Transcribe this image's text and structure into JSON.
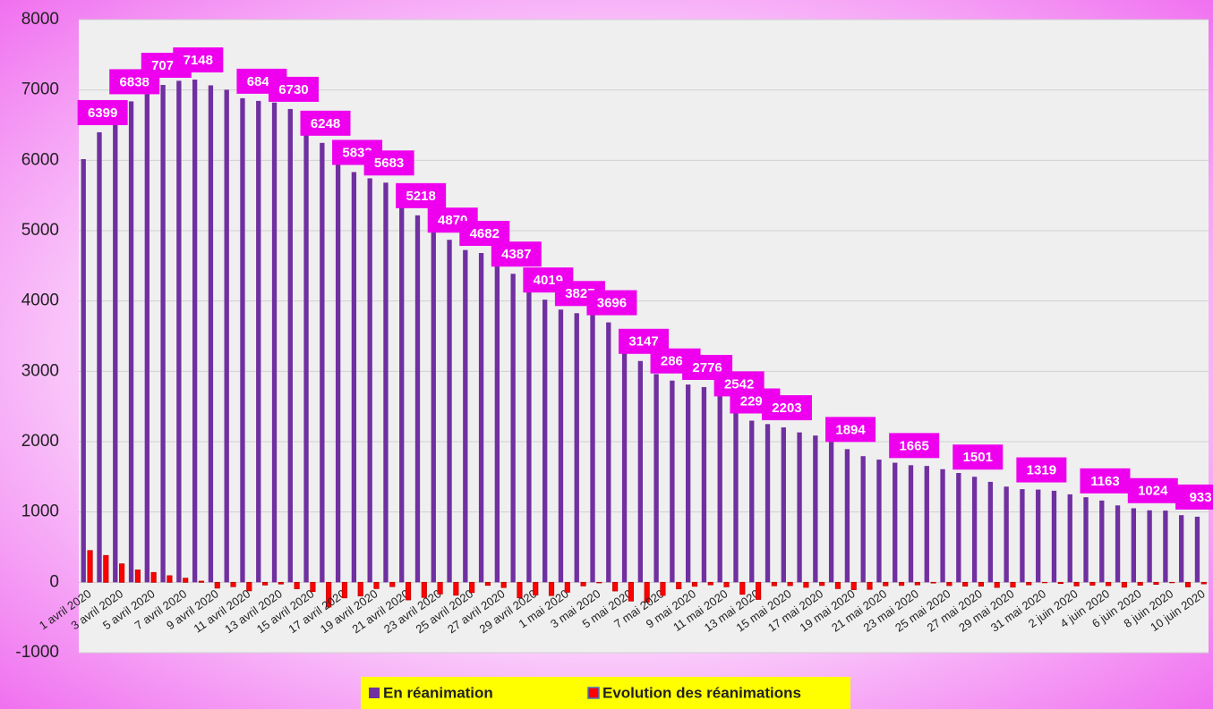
{
  "chart_data": {
    "type": "bar",
    "categories": [
      "1 avril 2020",
      null,
      "3 avril 2020",
      null,
      "5 avril 2020",
      null,
      "7 avril 2020",
      null,
      "9 avril 2020",
      null,
      "11 avril 2020",
      null,
      "13 avril 2020",
      null,
      "15 avril 2020",
      null,
      "17 avril 2020",
      null,
      "19 avril 2020",
      null,
      "21 avril 2020",
      null,
      "23 avril 2020",
      null,
      "25 avril 2020",
      null,
      "27 avril 2020",
      null,
      "29 avril 2020",
      null,
      "1 mai 2020",
      null,
      "3 mai 2020",
      null,
      "5 mai 2020",
      null,
      "7 mai 2020",
      null,
      "9 mai 2020",
      null,
      "11 mai 2020",
      null,
      "13 mai 2020",
      null,
      "15 mai 2020",
      null,
      "17 mai 2020",
      null,
      "19 mai 2020",
      null,
      "21 mai 2020",
      null,
      "23 mai 2020",
      null,
      "25 mai 2020",
      null,
      "27 mai 2020",
      null,
      "29 mai 2020",
      null,
      "31 mai 2020",
      null,
      "2 juin 2020",
      null,
      "4 juin 2020",
      null,
      "6 juin 2020",
      null,
      "8 juin 2020",
      null,
      "10 juin 2020"
    ],
    "series": [
      {
        "name": "En réanimation",
        "color": "#7030a0",
        "values": [
          6017,
          6399,
          6662,
          6838,
          6978,
          7072,
          7131,
          7148,
          7066,
          7004,
          6883,
          6845,
          6821,
          6730,
          6599,
          6248,
          6027,
          5833,
          5744,
          5683,
          5433,
          5218,
          5053,
          4870,
          4725,
          4682,
          4608,
          4387,
          4207,
          4019,
          3878,
          3827,
          3819,
          3696,
          3430,
          3147,
          2961,
          2868,
          2812,
          2776,
          2712,
          2542,
          2299,
          2250,
          2203,
          2132,
          2087,
          1998,
          1894,
          1794,
          1745,
          1701,
          1665,
          1655,
          1609,
          1555,
          1501,
          1429,
          1361,
          1325,
          1319,
          1302,
          1251,
          1210,
          1163,
          1094,
          1053,
          1024,
          1020,
          955,
          933
        ],
        "value_labels": [
          null,
          "6399",
          null,
          "6838",
          null,
          "7072",
          null,
          "7148",
          null,
          null,
          null,
          "6845",
          null,
          "6730",
          null,
          "6248",
          null,
          "5833",
          null,
          "5683",
          null,
          "5218",
          null,
          "4870",
          null,
          "4682",
          null,
          "4387",
          null,
          "4019",
          null,
          "3827",
          null,
          "3696",
          null,
          "3147",
          null,
          "2868",
          null,
          "2776",
          null,
          "2542",
          "2299",
          null,
          "2203",
          null,
          null,
          null,
          "1894",
          null,
          null,
          null,
          "1665",
          null,
          null,
          null,
          "1501",
          null,
          null,
          null,
          "1319",
          null,
          null,
          null,
          "1163",
          null,
          null,
          "1024",
          null,
          null,
          "933"
        ]
      },
      {
        "name": "Evolution des réanimations",
        "color": "#ff0000",
        "values": [
          452,
          382,
          263,
          176,
          140,
          94,
          59,
          17,
          -82,
          -62,
          -121,
          -38,
          -24,
          -91,
          -131,
          -351,
          -221,
          -194,
          -89,
          -61,
          -250,
          -215,
          -165,
          -183,
          -145,
          -43,
          -74,
          -221,
          -180,
          -188,
          -141,
          -51,
          -8,
          -123,
          -266,
          -283,
          -186,
          -93,
          -56,
          -36,
          -64,
          -170,
          -243,
          -49,
          -47,
          -71,
          -45,
          -89,
          -104,
          -100,
          -49,
          -44,
          -36,
          -10,
          -46,
          -54,
          -54,
          -72,
          -68,
          -36,
          -6,
          -17,
          -51,
          -41,
          -47,
          -69,
          -41,
          -29,
          -4,
          -65,
          -22
        ]
      }
    ],
    "ylim": [
      -1000,
      8000
    ],
    "yticks": [
      -1000,
      0,
      1000,
      2000,
      3000,
      4000,
      5000,
      6000,
      7000,
      8000
    ],
    "grid": true
  }
}
